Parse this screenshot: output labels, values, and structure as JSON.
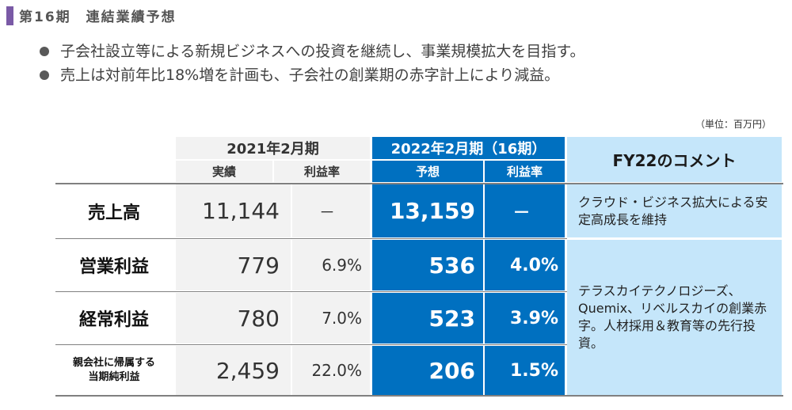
{
  "header": {
    "title": "第16期　連結業績予想"
  },
  "bullets": [
    "子会社設立等による新規ビジネスへの投資を継続し、事業規模拡大を目指す。",
    "売上は対前年比18%増を計画も、子会社の創業期の赤字計上により減益。"
  ],
  "unit_note": "（単位：百万円）",
  "table": {
    "period_prev": "2021年2月期",
    "period_curr": "2022年2月期（16期）",
    "comment_header": "FY22のコメント",
    "col_actual": "実績",
    "col_margin": "利益率",
    "col_forecast": "予想",
    "col_margin2": "利益率",
    "rows": [
      {
        "label": "売上高",
        "actual": "11,144",
        "margin": "－",
        "forecast": "13,159",
        "margin2": "－"
      },
      {
        "label": "営業利益",
        "actual": "779",
        "margin": "6.9%",
        "forecast": "536",
        "margin2": "4.0%"
      },
      {
        "label": "経常利益",
        "actual": "780",
        "margin": "7.0%",
        "forecast": "523",
        "margin2": "3.9%"
      },
      {
        "label_line1": "親会社に帰属する",
        "label_line2": "当期純利益",
        "actual": "2,459",
        "margin": "22.0%",
        "forecast": "206",
        "margin2": "1.5%"
      }
    ],
    "comments": {
      "sales": "クラウド・ビジネス拡大による安定高成長を維持",
      "profit": "テラスカイテクノロジーズ、Quemix、リベルスカイの創業赤字。人材採用＆教育等の先行投資。"
    }
  }
}
